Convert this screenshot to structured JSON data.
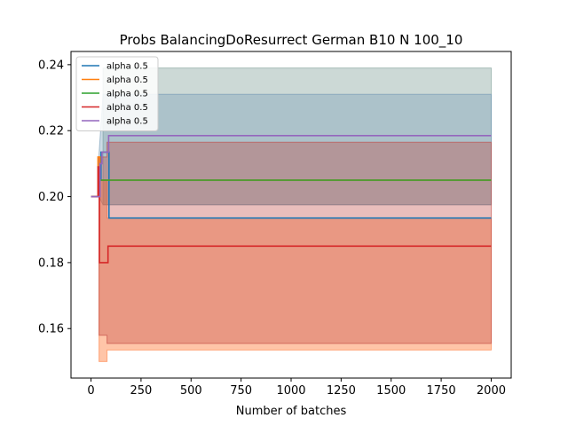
{
  "chart_data": {
    "type": "line",
    "title": "Probs BalancingDoResurrect German B10 N 100_10",
    "xlabel": "Number of batches",
    "ylabel": "",
    "xlim": [
      -100,
      2100
    ],
    "ylim": [
      0.145,
      0.244
    ],
    "xticks": [
      0,
      250,
      500,
      750,
      1000,
      1250,
      1500,
      1750,
      2000
    ],
    "xtick_labels": [
      "0",
      "250",
      "500",
      "750",
      "1000",
      "1250",
      "1500",
      "1750",
      "2000"
    ],
    "yticks": [
      0.16,
      0.18,
      0.2,
      0.22,
      0.24
    ],
    "ytick_labels": [
      "0.16",
      "0.18",
      "0.20",
      "0.22",
      "0.24"
    ],
    "grid": false,
    "legend_position": "top-left",
    "bands": [
      {
        "name": "band-upper-grey",
        "color": "#7f9f98",
        "opacity": 0.4,
        "x": [
          60,
          60,
          2000
        ],
        "upper": [
          0.2,
          0.239,
          0.239
        ],
        "lower": [
          0.2,
          0.1975,
          0.1975
        ]
      },
      {
        "name": "band-blue",
        "color": "#6f98b4",
        "opacity": 0.35,
        "x": [
          40,
          60,
          2000
        ],
        "upper": [
          0.213,
          0.231,
          0.231
        ],
        "lower": [
          0.2,
          0.1975,
          0.1975
        ]
      },
      {
        "name": "band-orange",
        "color": "#ff7f3f",
        "opacity": 0.45,
        "x": [
          40,
          80,
          80,
          2000
        ],
        "upper": [
          0.205,
          0.205,
          0.1935,
          0.1935
        ],
        "lower": [
          0.15,
          0.15,
          0.1535,
          0.1535
        ]
      },
      {
        "name": "band-red",
        "color": "#c0453f",
        "opacity": 0.35,
        "x": [
          40,
          80,
          80,
          2000
        ],
        "upper": [
          0.212,
          0.212,
          0.2165,
          0.2165
        ],
        "lower": [
          0.158,
          0.158,
          0.1555,
          0.1555
        ]
      }
    ],
    "series": [
      {
        "name": "alpha 0.5",
        "color": "#1f77b4",
        "x": [
          0,
          40,
          40,
          50,
          50,
          90,
          90,
          2000
        ],
        "y": [
          0.2,
          0.2,
          0.205,
          0.205,
          0.2135,
          0.2135,
          0.1935,
          0.1935
        ]
      },
      {
        "name": "alpha 0.5",
        "color": "#ff7f0e",
        "x": [
          0,
          35,
          35,
          45,
          45,
          85,
          2000
        ],
        "y": [
          0.2,
          0.2,
          0.212,
          0.212,
          0.205,
          0.205,
          0.205
        ]
      },
      {
        "name": "alpha 0.5",
        "color": "#2ca02c",
        "x": [
          0,
          40,
          40,
          80,
          2000
        ],
        "y": [
          0.2,
          0.2,
          0.205,
          0.205,
          0.205
        ]
      },
      {
        "name": "alpha 0.5",
        "color": "#d62728",
        "x": [
          0,
          35,
          35,
          42,
          42,
          85,
          85,
          2000
        ],
        "y": [
          0.2,
          0.2,
          0.209,
          0.209,
          0.18,
          0.18,
          0.185,
          0.185
        ]
      },
      {
        "name": "alpha 0.5",
        "color": "#9467bd",
        "x": [
          0,
          45,
          45,
          55,
          55,
          88,
          88,
          2000
        ],
        "y": [
          0.2,
          0.2,
          0.21,
          0.21,
          0.2135,
          0.2135,
          0.2185,
          0.2185
        ]
      }
    ],
    "legend": [
      "alpha 0.5",
      "alpha 0.5",
      "alpha 0.5",
      "alpha 0.5",
      "alpha 0.5"
    ]
  }
}
